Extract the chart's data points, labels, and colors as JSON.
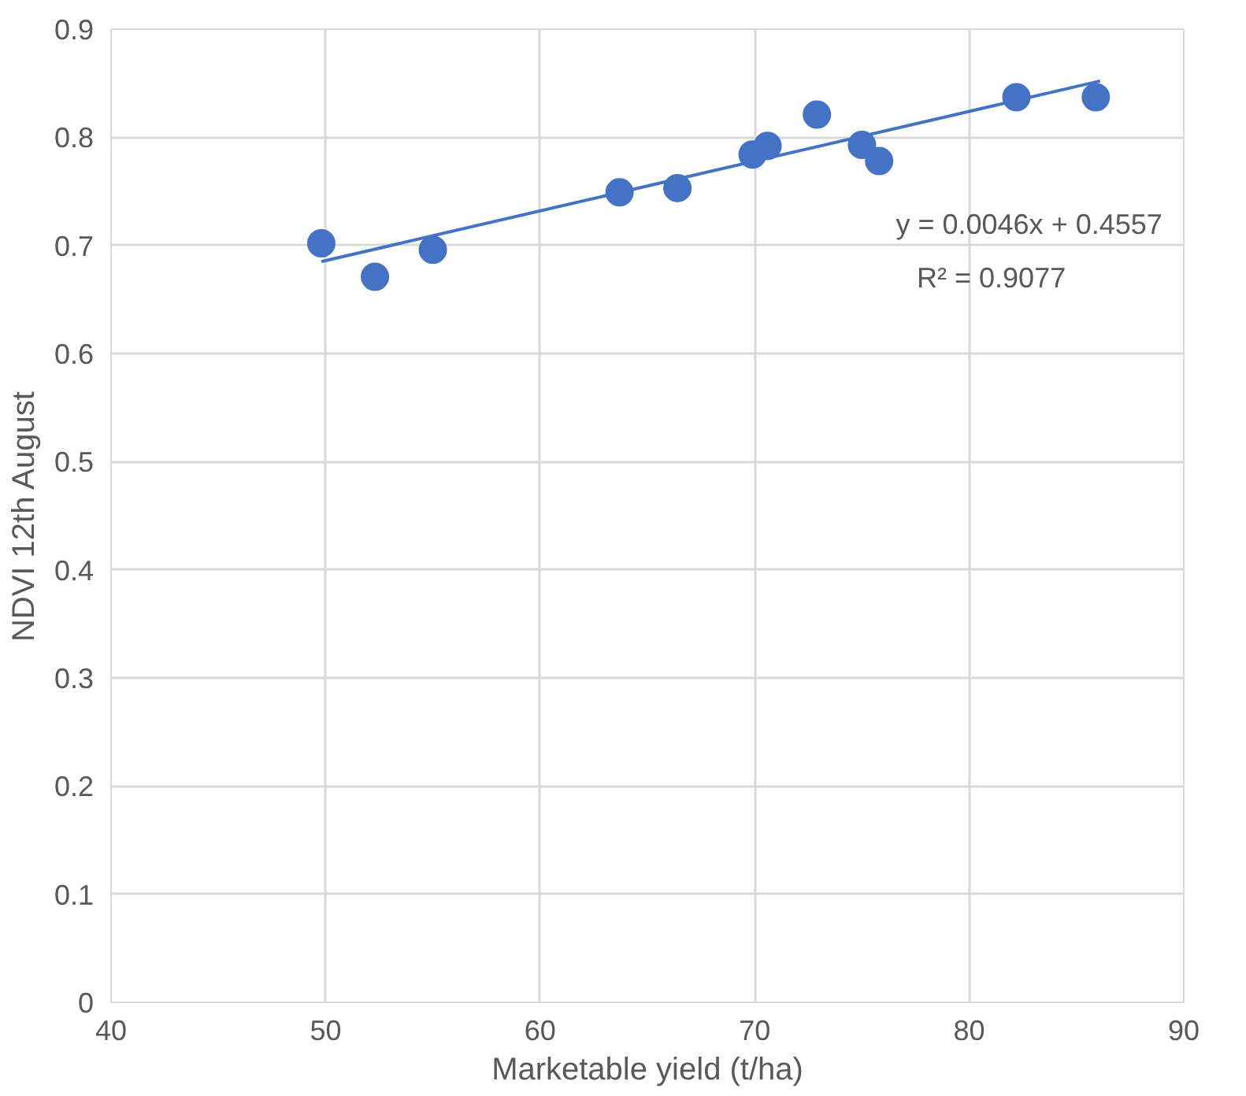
{
  "chart_data": {
    "type": "scatter",
    "xlabel": "Marketable yield (t/ha)",
    "ylabel": "NDVI 12th August",
    "xlim": [
      40,
      90
    ],
    "xticks": [
      40,
      50,
      60,
      70,
      80,
      90
    ],
    "ylim": [
      0,
      0.9
    ],
    "yticks": [
      0,
      0.1,
      0.2,
      0.3,
      0.4,
      0.5,
      0.6,
      0.7,
      0.8,
      0.9
    ],
    "grid": true,
    "marker": "circle",
    "series": [
      {
        "color": "#4472c4",
        "x": [
          49.8,
          52.3,
          55.0,
          63.7,
          66.4,
          69.9,
          70.6,
          72.9,
          75.0,
          75.8,
          82.2,
          85.9
        ],
        "values": [
          0.702,
          0.671,
          0.696,
          0.749,
          0.753,
          0.784,
          0.792,
          0.821,
          0.793,
          0.778,
          0.837,
          0.837
        ]
      },
      {
        "type": "line",
        "color": "#4472c4",
        "marker": "none",
        "x": [
          49.8,
          86.1
        ],
        "values": [
          0.685,
          0.852
        ]
      }
    ],
    "annotations": [
      "y = 0.0046x + 0.4557",
      "R² = 0.9077"
    ]
  }
}
